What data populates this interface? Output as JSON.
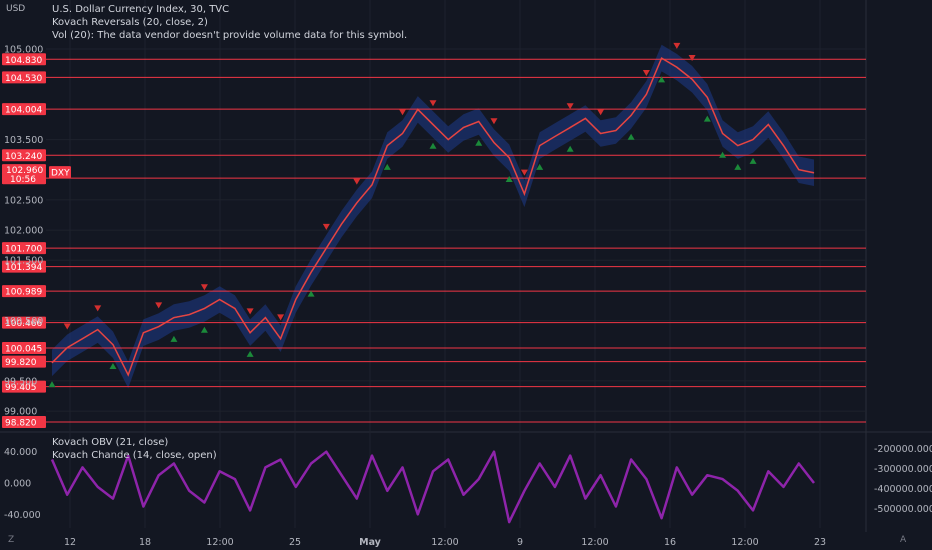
{
  "header": {
    "currency": "USD",
    "title_line": "U.S. Dollar Currency Index, 30, TVC",
    "indicator_line_1": "Kovach Reversals (20, close, 2)",
    "indicator_line_2": "Vol (20): The data vendor doesn't provide volume data for this symbol."
  },
  "lower_pane": {
    "legend_1": "Kovach OBV (21, close)",
    "legend_2": "Kovach Chande (14, close, open)"
  },
  "corners": {
    "left": "Z",
    "right": "A"
  },
  "colors": {
    "background": "#131722",
    "level_line": "#f23645",
    "level_label_bg": "#f23645",
    "price_line": "#e53935",
    "band": "#1e3a8a",
    "sell_marker": "#d32f2f",
    "buy_marker": "#1b8a3a",
    "oscillator": "#8e24aa"
  },
  "chart_data": [
    {
      "type": "line",
      "name": "price",
      "left_axis_ticks": [
        "105.000",
        "103.500",
        "102.500",
        "102.000",
        "101.500",
        "100.500",
        "99.500",
        "99.000"
      ],
      "levels": [
        "104.830",
        "104.530",
        "104.004",
        "103.240",
        "102.860",
        "101.700",
        "101.394",
        "100.989",
        "100.466",
        "100.045",
        "99.820",
        "99.405",
        "98.820"
      ],
      "current_price": {
        "value": "102.960",
        "time": "10:56",
        "symbol": "DXY"
      },
      "x_tick_labels": [
        "12",
        "18",
        "12:00",
        "25",
        "May",
        "12:00",
        "9",
        "12:00",
        "16",
        "12:00",
        "23"
      ],
      "x": [
        0,
        2,
        4,
        6,
        8,
        10,
        12,
        14,
        16,
        18,
        20,
        22,
        24,
        26,
        28,
        30,
        32,
        34,
        36,
        38,
        40,
        42,
        44,
        46,
        48,
        50,
        52,
        54,
        56,
        58,
        60,
        62,
        64,
        66,
        68,
        70,
        72,
        74,
        76,
        78,
        80,
        82,
        84,
        86,
        88,
        90,
        92,
        94,
        96,
        98,
        100
      ],
      "close": [
        99.8,
        100.05,
        100.2,
        100.35,
        100.1,
        99.6,
        100.3,
        100.4,
        100.55,
        100.6,
        100.7,
        100.85,
        100.7,
        100.3,
        100.55,
        100.2,
        100.85,
        101.3,
        101.7,
        102.1,
        102.45,
        102.75,
        103.4,
        103.6,
        104.0,
        103.75,
        103.5,
        103.7,
        103.8,
        103.45,
        103.2,
        102.6,
        103.4,
        103.55,
        103.7,
        103.85,
        103.6,
        103.65,
        103.9,
        104.25,
        104.85,
        104.7,
        104.5,
        104.2,
        103.6,
        103.4,
        103.5,
        103.75,
        103.4,
        103.0,
        102.95
      ],
      "band_width": 0.22,
      "sell_signals_at": [
        2,
        6,
        14,
        20,
        26,
        30,
        36,
        40,
        46,
        50,
        58,
        62,
        68,
        72,
        78,
        82,
        84
      ],
      "buy_signals_at": [
        0,
        8,
        16,
        20,
        26,
        34,
        44,
        50,
        56,
        60,
        64,
        68,
        76,
        80,
        86,
        88,
        90,
        92
      ]
    },
    {
      "type": "line",
      "name": "Kovach Chande oscillator",
      "left_axis_ticks": [
        "40.000",
        "0.000",
        "-40.000"
      ],
      "right_axis_ticks": [
        "-200000.000",
        "-300000.000",
        "-400000.000",
        "-500000.000"
      ],
      "ylim": [
        -55,
        55
      ],
      "x": [
        0,
        2,
        4,
        6,
        8,
        10,
        12,
        14,
        16,
        18,
        20,
        22,
        24,
        26,
        28,
        30,
        32,
        34,
        36,
        38,
        40,
        42,
        44,
        46,
        48,
        50,
        52,
        54,
        56,
        58,
        60,
        62,
        64,
        66,
        68,
        70,
        72,
        74,
        76,
        78,
        80,
        82,
        84,
        86,
        88,
        90,
        92,
        94,
        96,
        98,
        100
      ],
      "values": [
        30,
        -15,
        20,
        -5,
        -20,
        35,
        -30,
        10,
        25,
        -10,
        -25,
        15,
        5,
        -35,
        20,
        30,
        -5,
        25,
        40,
        10,
        -20,
        35,
        -10,
        20,
        -40,
        15,
        30,
        -15,
        5,
        40,
        -50,
        -10,
        25,
        -5,
        35,
        -20,
        10,
        -30,
        30,
        5,
        -45,
        20,
        -15,
        10,
        5,
        -10,
        -35,
        15,
        -5,
        25,
        0
      ]
    }
  ]
}
